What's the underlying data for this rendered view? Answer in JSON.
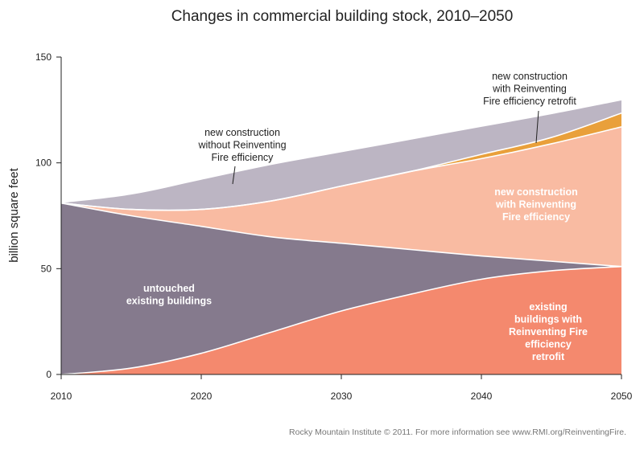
{
  "chart_data": {
    "type": "area",
    "title": "Changes in commercial building stock, 2010–2050",
    "xlabel": "",
    "ylabel": "billion square feet",
    "xlim": [
      2010,
      2050
    ],
    "ylim": [
      0,
      150
    ],
    "x_ticks": [
      "2010",
      "2020",
      "2030",
      "2040",
      "2050"
    ],
    "y_ticks": [
      "0",
      "50",
      "100",
      "150"
    ],
    "grid": false,
    "legend": "none (direct labels)",
    "x": [
      2010,
      2015,
      2020,
      2025,
      2030,
      2035,
      2040,
      2045,
      2050
    ],
    "stacking": "boundaries are cumulative stack tops in billion square feet",
    "series": [
      {
        "name": "existing buildings with Reinventing Fire efficiency retrofit",
        "label_lines": [
          "existing",
          "buildings with",
          "Reinventing Fire",
          "efficiency",
          "retrofit"
        ],
        "color": "#f4896e",
        "top": [
          0,
          3,
          10,
          20,
          30,
          38,
          45,
          49,
          51
        ]
      },
      {
        "name": "untouched existing buildings",
        "label_lines": [
          "untouched",
          "existing buildings"
        ],
        "color": "#857a8d",
        "top": [
          81,
          75,
          70,
          65,
          62,
          59,
          56,
          53.5,
          51
        ]
      },
      {
        "name": "new construction with Reinventing Fire efficiency",
        "label_lines": [
          "new construction",
          "with Reinventing",
          "Fire efficiency"
        ],
        "color": "#f9bba2",
        "top": [
          81,
          78,
          78,
          82,
          89,
          96,
          102,
          109,
          117
        ]
      },
      {
        "name": "new construction with Reinventing Fire efficiency retrofit",
        "label_lines": [
          "new construction",
          "with Reinventing",
          "Fire efficiency retrofit"
        ],
        "color": "#e9a03b",
        "top": [
          81,
          78,
          78,
          82,
          89,
          96,
          104,
          112,
          123.5
        ]
      },
      {
        "name": "new construction without Reinventing Fire efficiency",
        "label_lines": [
          "new construction",
          "without Reinventing",
          "Fire efficiency"
        ],
        "color": "#bcb5c3",
        "top": [
          81,
          85,
          92,
          99,
          105,
          111,
          117,
          123,
          129.5
        ]
      }
    ]
  },
  "footer": {
    "credit": "Rocky Mountain Institute © 2011. For more information see www.RMI.org/ReinventingFire."
  }
}
